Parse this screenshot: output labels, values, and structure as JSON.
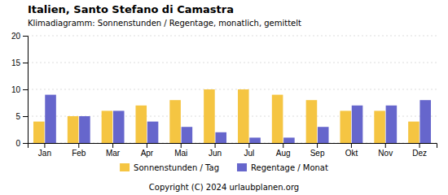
{
  "chart_data": {
    "type": "bar",
    "title": "Italien, Santo Stefano di Camastra",
    "subtitle": "Klimadiagramm: Sonnenstunden / Regentage, monatlich, gemittelt",
    "annotations": [
      {
        "text": "Copyright (C) 2024 urlaubplanen.org"
      }
    ],
    "categories": [
      "Jan",
      "Feb",
      "Mar",
      "Apr",
      "Mai",
      "Jun",
      "Jul",
      "Aug",
      "Sep",
      "Okt",
      "Nov",
      "Dez"
    ],
    "series": [
      {
        "name": "Sonnenstunden / Tag",
        "color": "#F5C542",
        "values": [
          4,
          5,
          6,
          7,
          8,
          10,
          10,
          9,
          8,
          6,
          6,
          4
        ]
      },
      {
        "name": "Regentage / Monat",
        "color": "#6666CC",
        "values": [
          9,
          5,
          6,
          4,
          3,
          2,
          1,
          1,
          3,
          7,
          7,
          8
        ]
      }
    ],
    "ylim": [
      0,
      20
    ],
    "yticks": [
      0,
      5,
      10,
      15,
      20
    ],
    "grid": true,
    "legend": "bottom"
  }
}
